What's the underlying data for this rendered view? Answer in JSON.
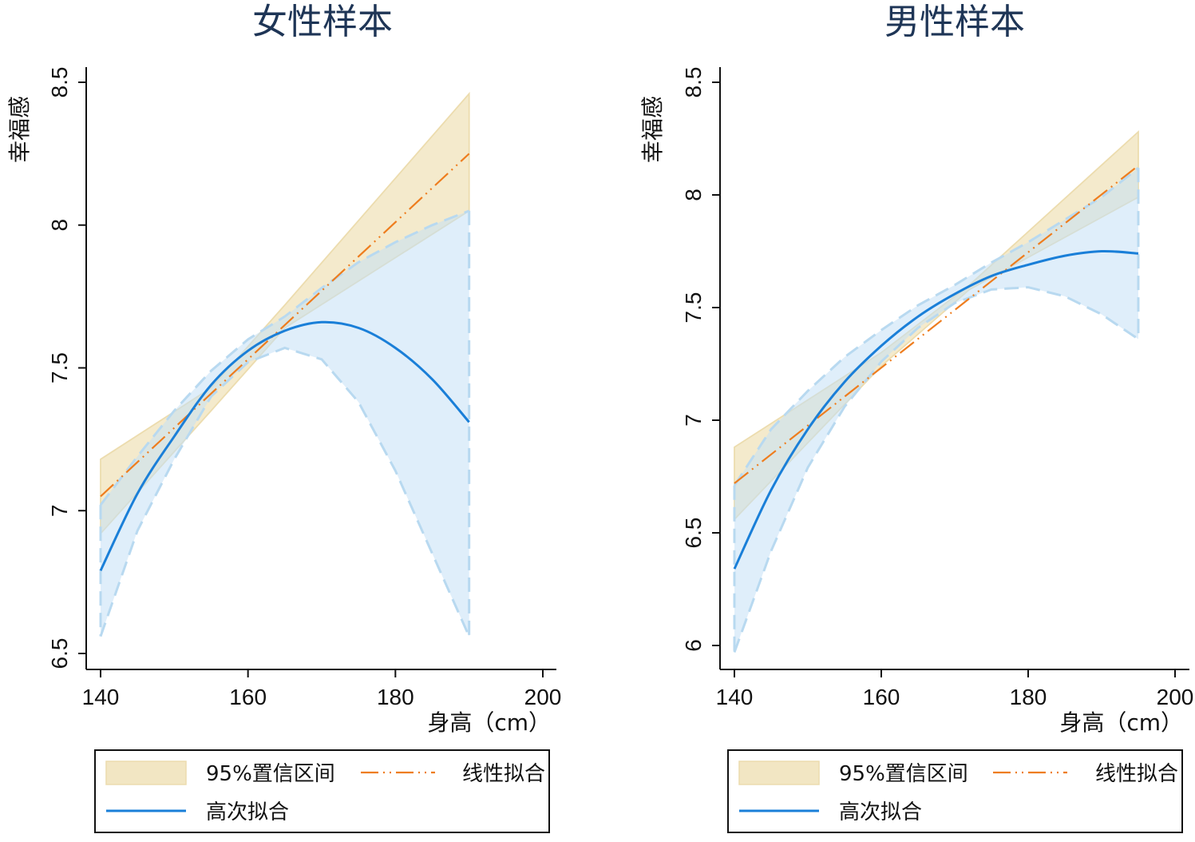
{
  "chart_data": [
    {
      "type": "line",
      "title": "女性样本",
      "xlabel": "身高（cm）",
      "ylabel": "幸福感",
      "xlim": [
        140,
        200
      ],
      "ylim": [
        6.5,
        8.5
      ],
      "xticks": [
        "140",
        "160",
        "180",
        "200"
      ],
      "yticks": [
        "6.5",
        "7",
        "7.5",
        "8",
        "8.5"
      ],
      "legend": {
        "placement": "bottom",
        "ci_label": "95%置信区间",
        "linear_label": "线性拟合",
        "poly_label": "高次拟合"
      },
      "colors": {
        "ci_linear": "#f2e6c3",
        "ci_poly": "#c5e0f5",
        "linear": "#ee7d1e",
        "poly": "#1a7fd8"
      },
      "linear_fit": {
        "x": [
          140,
          190
        ],
        "y": [
          7.05,
          8.25
        ]
      },
      "linear_ci": {
        "x": [
          140,
          155,
          165,
          190
        ],
        "lower": [
          6.92,
          7.35,
          7.64,
          8.05
        ],
        "upper": [
          7.18,
          7.43,
          7.72,
          8.46
        ]
      },
      "poly_fit": {
        "x": [
          140,
          145,
          150,
          155,
          160,
          165,
          170,
          175,
          180,
          185,
          190
        ],
        "y": [
          6.79,
          7.06,
          7.26,
          7.44,
          7.56,
          7.63,
          7.66,
          7.64,
          7.57,
          7.46,
          7.31
        ]
      },
      "poly_ci": {
        "x": [
          140,
          145,
          150,
          155,
          160,
          165,
          170,
          175,
          180,
          185,
          190
        ],
        "lower": [
          6.56,
          6.93,
          7.18,
          7.4,
          7.52,
          7.57,
          7.53,
          7.38,
          7.14,
          6.85,
          6.56
        ],
        "upper": [
          7.02,
          7.19,
          7.35,
          7.49,
          7.6,
          7.68,
          7.78,
          7.87,
          7.94,
          8.0,
          8.05
        ]
      }
    },
    {
      "type": "line",
      "title": "男性样本",
      "xlabel": "身高（cm）",
      "ylabel": "幸福感",
      "xlim": [
        140,
        200
      ],
      "ylim": [
        6,
        8.5
      ],
      "xticks": [
        "140",
        "160",
        "180",
        "200"
      ],
      "yticks": [
        "6",
        "6.5",
        "7",
        "7.5",
        "8",
        "8.5"
      ],
      "legend": {
        "placement": "bottom",
        "ci_label": "95%置信区间",
        "linear_label": "线性拟合",
        "poly_label": "高次拟合"
      },
      "colors": {
        "ci_linear": "#f2e6c3",
        "ci_poly": "#c5e0f5",
        "linear": "#ee7d1e",
        "poly": "#1a7fd8"
      },
      "linear_fit": {
        "x": [
          140,
          195
        ],
        "y": [
          6.72,
          8.13
        ]
      },
      "linear_ci": {
        "x": [
          140,
          160,
          172,
          195
        ],
        "lower": [
          6.56,
          7.24,
          7.58,
          7.99
        ],
        "upper": [
          6.88,
          7.3,
          7.6,
          8.28
        ]
      },
      "poly_fit": {
        "x": [
          140,
          145,
          150,
          155,
          160,
          165,
          170,
          175,
          180,
          185,
          190,
          195
        ],
        "y": [
          6.34,
          6.69,
          6.96,
          7.17,
          7.33,
          7.46,
          7.56,
          7.64,
          7.69,
          7.73,
          7.75,
          7.74
        ]
      },
      "poly_ci": {
        "x": [
          140,
          145,
          150,
          155,
          160,
          165,
          170,
          175,
          180,
          185,
          190,
          195
        ],
        "lower": [
          5.97,
          6.42,
          6.79,
          7.06,
          7.26,
          7.41,
          7.52,
          7.58,
          7.59,
          7.55,
          7.47,
          7.36
        ],
        "upper": [
          6.71,
          6.96,
          7.13,
          7.28,
          7.4,
          7.51,
          7.6,
          7.7,
          7.79,
          7.89,
          7.99,
          8.12
        ]
      }
    }
  ]
}
